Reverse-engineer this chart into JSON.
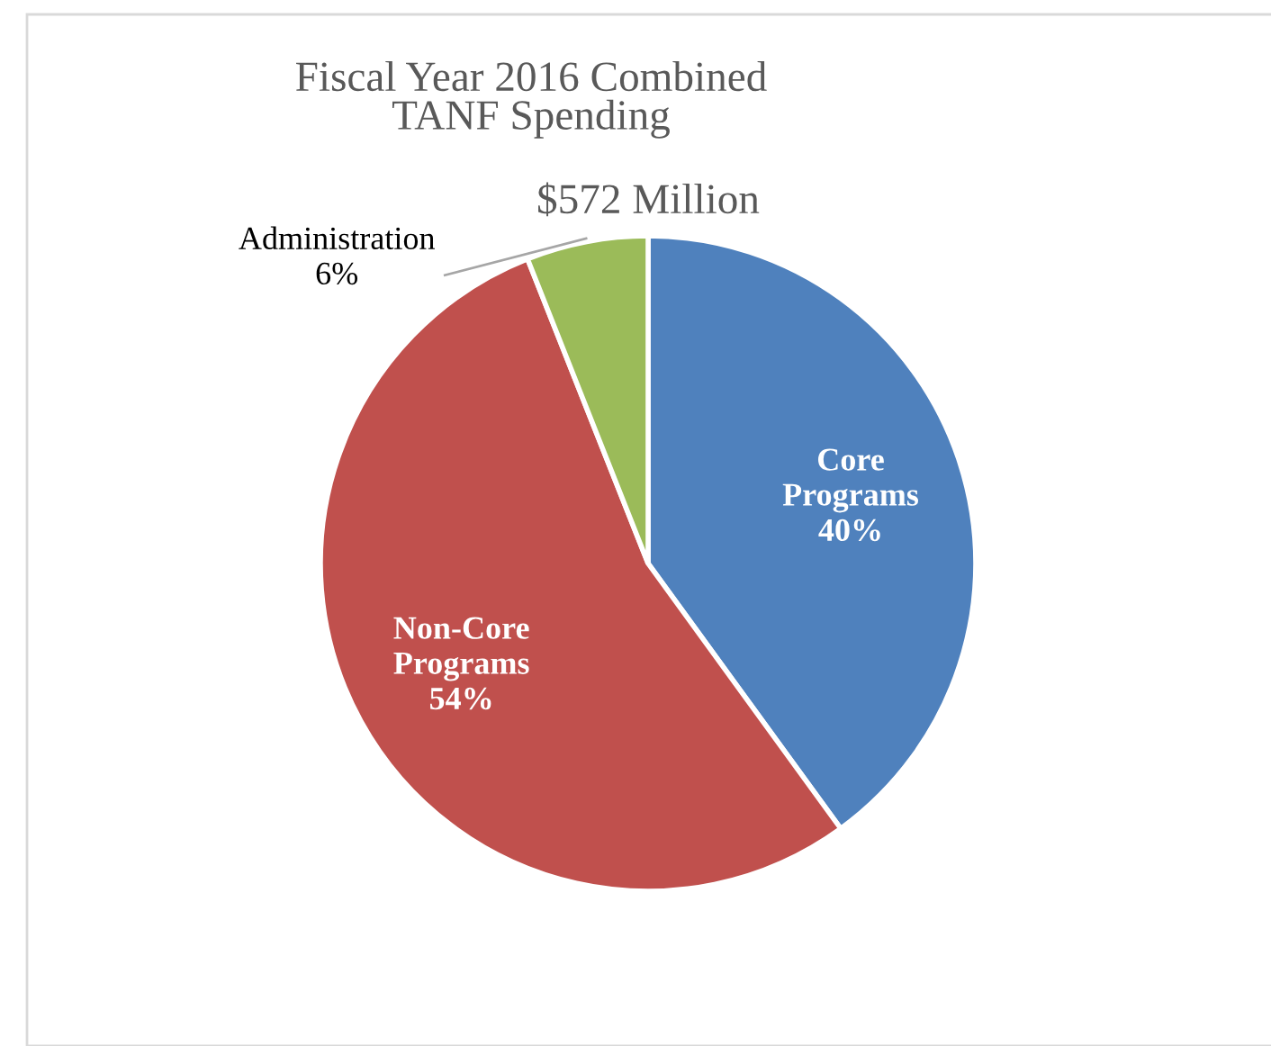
{
  "chart_data": {
    "type": "pie",
    "title": "Fiscal Year 2016 Combined TANF Spending",
    "subtitle": "$572 Million",
    "categories": [
      "Core Programs",
      "Non-Core Programs",
      "Administration"
    ],
    "values": [
      40,
      54,
      6
    ],
    "colors": [
      "#4f81bd",
      "#c0504d",
      "#9bbb59"
    ],
    "value_labels": [
      "40%",
      "54%",
      "6%"
    ],
    "data_labels": true,
    "legend": false
  }
}
